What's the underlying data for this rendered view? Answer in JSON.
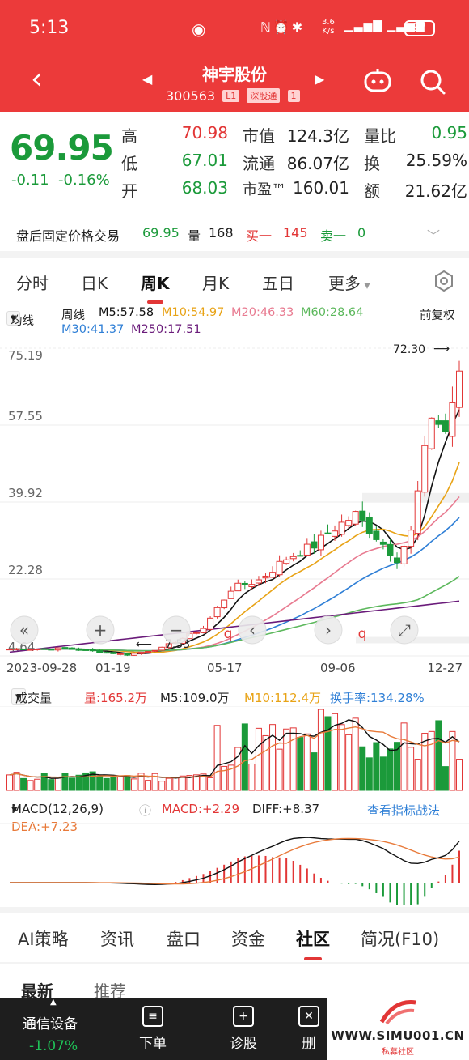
{
  "status": {
    "time": "5:13",
    "net_speed_top": "3.6",
    "net_speed_bottom": "K/s",
    "battery": "97"
  },
  "header": {
    "stock_name": "神宇股份",
    "stock_code": "300563",
    "badge_level": "L1",
    "badge_market": "深股通",
    "badge_extra": "1"
  },
  "quote": {
    "price": "69.95",
    "change": "-0.11",
    "change_pct": "-0.16%",
    "high_label": "高",
    "high": "70.98",
    "low_label": "低",
    "low": "67.01",
    "open_label": "开",
    "open": "68.03",
    "mcap_label": "市值",
    "mcap": "124.3亿",
    "float_label": "流通",
    "float_mcap": "86.07亿",
    "pe_label": "市盈™",
    "pe": "160.01",
    "vol_ratio_label": "量比",
    "vol_ratio": "0.95",
    "turnover_label": "换",
    "turnover": "25.59%",
    "amount_label": "额",
    "amount": "21.62亿"
  },
  "after_hours": {
    "label": "盘后固定价格交易",
    "price": "69.95",
    "vol_label": "量",
    "vol": "168",
    "bid_label": "买一",
    "bid": "145",
    "ask_label": "卖一",
    "ask": "0"
  },
  "period_tabs": [
    {
      "label": "分时"
    },
    {
      "label": "日K"
    },
    {
      "label": "周K"
    },
    {
      "label": "月K"
    },
    {
      "label": "五日"
    },
    {
      "label": "更多"
    }
  ],
  "ma_legend": {
    "selector": "均线",
    "period": "周线",
    "m5": "M5:57.58",
    "m10": "M10:54.97",
    "m20": "M20:46.33",
    "m60": "M60:28.64",
    "m30": "M30:41.37",
    "m250": "M250:17.51",
    "adjust": "前复权"
  },
  "chart_data": {
    "type": "candlestick",
    "y_ticks": [
      "75.19",
      "57.55",
      "39.92",
      "22.28",
      "4.64"
    ],
    "x_labels": [
      "2023-09-28",
      "01-19",
      "05-17",
      "09-06",
      "12-27"
    ],
    "high_marker": "72.30",
    "low_marker": "7.53",
    "colors": {
      "up": "#e23636",
      "down": "#1b9a3a",
      "m5": "#111111",
      "m10": "#e8a316",
      "m20": "#e87a90",
      "m30": "#2f7fd6",
      "m60": "#5cb85c",
      "m250": "#6a1b7a"
    }
  },
  "volume": {
    "selector": "成交量",
    "vol": "量:165.2万",
    "m5": "M5:109.0万",
    "m10": "M10:112.4万",
    "turnover": "换手率:134.28%"
  },
  "macd": {
    "selector": "MACD(12,26,9)",
    "macd": "MACD:+2.29",
    "diff": "DIFF:+8.37",
    "dea": "DEA:+7.23",
    "link": "查看指标战法"
  },
  "bottom_tabs": [
    {
      "label": "AI策略"
    },
    {
      "label": "资讯"
    },
    {
      "label": "盘口"
    },
    {
      "label": "资金"
    },
    {
      "label": "社区"
    },
    {
      "label": "简况(F10)"
    }
  ],
  "sub_tabs": {
    "latest": "最新",
    "recommend": "推荐"
  },
  "bottom_bar": {
    "sector": "通信设备",
    "sector_chg": "-1.07%",
    "order": "下单",
    "diagnose": "诊股",
    "delete": "删"
  },
  "watermark": {
    "text": "WWW.SIMU001.CN",
    "sub": "私募社区"
  }
}
